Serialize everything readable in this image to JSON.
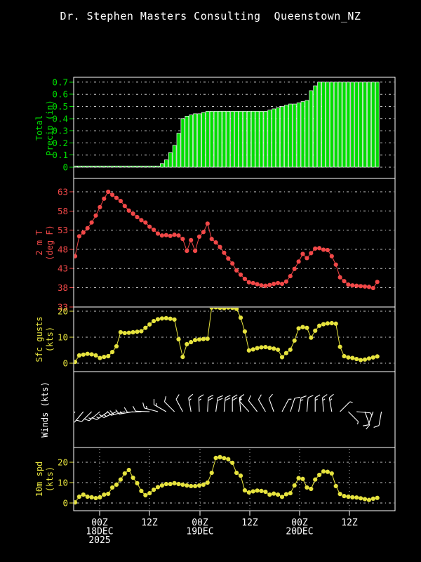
{
  "title": "Dr. Stephen Masters Consulting  Queenstown_NZ",
  "colors": {
    "precip": "#00dc00",
    "temp": "#f24848",
    "gust": "#e6e33e",
    "spd": "#e6e33e",
    "wind": "#ffffff",
    "grid": "#cccccc",
    "frame": "#ffffff",
    "text": "#ffffff",
    "background": "#000000"
  },
  "x_axis": {
    "tick_labels": [
      [
        "00Z",
        "18DEC",
        "2025"
      ],
      [
        "12Z"
      ],
      [
        "00Z",
        "19DEC"
      ],
      [
        "12Z"
      ],
      [
        "00Z",
        "20DEC"
      ],
      [
        "12Z"
      ]
    ]
  },
  "chart_data": [
    {
      "type": "bar",
      "name": "total-precip",
      "axis_label_lines": [
        "Total",
        "Precip (in)"
      ],
      "unit": "in",
      "yticks": [
        "0.7",
        "0.6",
        "0.5",
        "0.4",
        "0.3",
        "0.2",
        "0.1",
        "0"
      ],
      "ylim": [
        0,
        0.74
      ],
      "values": [
        0.01,
        0.01,
        0.01,
        0.01,
        0.01,
        0.01,
        0.01,
        0.01,
        0.01,
        0.01,
        0.01,
        0.01,
        0.01,
        0.01,
        0.01,
        0.01,
        0.01,
        0.01,
        0.01,
        0.01,
        0.01,
        0.03,
        0.06,
        0.12,
        0.18,
        0.28,
        0.4,
        0.42,
        0.43,
        0.44,
        0.44,
        0.45,
        0.46,
        0.46,
        0.46,
        0.46,
        0.46,
        0.46,
        0.46,
        0.46,
        0.46,
        0.46,
        0.46,
        0.46,
        0.46,
        0.46,
        0.46,
        0.47,
        0.48,
        0.49,
        0.5,
        0.51,
        0.52,
        0.52,
        0.53,
        0.54,
        0.55,
        0.63,
        0.67,
        0.7,
        0.7,
        0.7,
        0.7,
        0.7,
        0.7,
        0.7,
        0.7,
        0.7,
        0.7,
        0.7,
        0.7,
        0.7,
        0.7,
        0.7
      ]
    },
    {
      "type": "line",
      "name": "2m-temperature",
      "axis_label_lines": [
        "2 m T",
        "(deg F)"
      ],
      "unit": "deg F",
      "yticks": [
        "63",
        "58",
        "53",
        "48",
        "43",
        "38",
        "33"
      ],
      "ylim": [
        33,
        66.5
      ],
      "values": [
        46.2,
        51.4,
        52.4,
        53.5,
        55.0,
        56.8,
        59.0,
        61.2,
        63.0,
        62.2,
        61.4,
        60.6,
        59.3,
        58.1,
        57.3,
        56.4,
        55.6,
        55.0,
        53.9,
        53.1,
        52.1,
        51.6,
        51.7,
        51.5,
        51.8,
        51.6,
        50.7,
        47.6,
        50.4,
        47.6,
        51.3,
        52.5,
        54.7,
        50.7,
        49.8,
        48.6,
        47.1,
        45.6,
        44.3,
        42.5,
        41.4,
        40.3,
        39.4,
        39.2,
        38.9,
        38.6,
        38.5,
        38.7,
        39.0,
        39.2,
        39.0,
        39.6,
        41.0,
        42.9,
        44.8,
        46.8,
        45.7,
        47.0,
        48.2,
        48.3,
        47.9,
        47.8,
        46.2,
        44.0,
        40.7,
        39.7,
        38.8,
        38.6,
        38.5,
        38.4,
        38.3,
        38.2,
        37.9,
        39.5
      ]
    },
    {
      "type": "line",
      "name": "surface-gusts",
      "axis_label_lines": [
        "Sfc gusts",
        "(kts)"
      ],
      "unit": "kts",
      "yticks": [
        "20",
        "10",
        "0"
      ],
      "ylim": [
        0,
        21.6
      ],
      "values": [
        0.5,
        3.0,
        3.3,
        3.6,
        3.4,
        3.0,
        2.0,
        2.4,
        2.7,
        4.3,
        6.5,
        11.9,
        11.6,
        11.7,
        11.9,
        12.1,
        12.3,
        13.6,
        14.9,
        16.2,
        16.9,
        17.2,
        17.3,
        17.1,
        16.8,
        9.2,
        2.4,
        7.3,
        8.1,
        8.9,
        9.1,
        9.3,
        9.4,
        21.4,
        21.5,
        21.3,
        21.2,
        21.4,
        21.3,
        20.9,
        17.5,
        12.2,
        4.9,
        5.3,
        5.8,
        6.1,
        6.2,
        5.9,
        5.6,
        5.2,
        2.3,
        3.9,
        5.2,
        8.7,
        13.4,
        13.9,
        13.6,
        9.8,
        12.5,
        14.4,
        15.0,
        15.3,
        15.4,
        15.2,
        6.3,
        2.7,
        2.2,
        2.0,
        1.6,
        1.2,
        1.4,
        1.8,
        2.2,
        2.6
      ]
    },
    {
      "type": "wind-barbs",
      "name": "winds",
      "axis_label_lines": [
        "Winds (kts)"
      ],
      "unit": "kts",
      "barbs": [
        {
          "dir": 215,
          "spd": 10
        },
        {
          "dir": 220,
          "spd": 10
        },
        {
          "dir": 225,
          "spd": 10
        },
        {
          "dir": 230,
          "spd": 15
        },
        {
          "dir": 235,
          "spd": 15
        },
        {
          "dir": 245,
          "spd": 15
        },
        {
          "dir": 255,
          "spd": 20
        },
        {
          "dir": 260,
          "spd": 15
        },
        {
          "dir": 268,
          "spd": 10
        },
        {
          "dir": 272,
          "spd": 10
        },
        {
          "dir": 285,
          "spd": 15
        },
        {
          "dir": 300,
          "spd": 15
        },
        {
          "dir": 315,
          "spd": 10
        },
        {
          "dir": 332,
          "spd": 10
        },
        {
          "dir": 350,
          "spd": 15
        },
        {
          "dir": 358,
          "spd": 15
        },
        {
          "dir": 3,
          "spd": 20
        },
        {
          "dir": 8,
          "spd": 20
        },
        {
          "dir": 5,
          "spd": 20
        },
        {
          "dir": 0,
          "spd": 20
        },
        {
          "dir": 355,
          "spd": 15
        },
        {
          "dir": 318,
          "spd": 10
        },
        {
          "dir": 322,
          "spd": 10
        },
        {
          "dir": 330,
          "spd": 10
        },
        {
          "dir": 340,
          "spd": 10
        },
        {
          "dir": 28,
          "spd": 5
        },
        {
          "dir": 18,
          "spd": 10
        },
        {
          "dir": 10,
          "spd": 15
        },
        {
          "dir": 5,
          "spd": 10
        },
        {
          "dir": 0,
          "spd": 15
        },
        {
          "dir": 356,
          "spd": 15
        },
        {
          "dir": 350,
          "spd": 15
        },
        {
          "dir": 45,
          "spd": 5
        },
        {
          "dir": 135,
          "spd": 5
        },
        {
          "dir": 95,
          "spd": 5
        },
        {
          "dir": 160,
          "spd": 10
        },
        {
          "dir": 200,
          "spd": 10
        },
        {
          "dir": 190,
          "spd": 10
        }
      ]
    },
    {
      "type": "line",
      "name": "10m-wind-speed",
      "axis_label_lines": [
        "10m spd",
        "(kts)"
      ],
      "unit": "kts",
      "yticks": [
        "20",
        "10",
        "0"
      ],
      "ylim": [
        0,
        27
      ],
      "values": [
        0.3,
        3.1,
        4.1,
        3.1,
        2.8,
        2.4,
        2.8,
        4.1,
        4.5,
        7.6,
        9.0,
        11.5,
        14.5,
        16.2,
        12.4,
        9.7,
        5.9,
        3.8,
        4.8,
        6.5,
        7.8,
        8.6,
        9.3,
        9.3,
        9.7,
        9.3,
        9.0,
        8.6,
        8.3,
        8.3,
        8.6,
        9.0,
        10.0,
        14.8,
        22.1,
        22.5,
        22.0,
        21.5,
        19.7,
        14.8,
        13.4,
        6.2,
        5.2,
        5.7,
        6.1,
        5.9,
        5.5,
        4.1,
        4.6,
        4.1,
        3.0,
        4.3,
        4.8,
        8.6,
        12.2,
        11.8,
        7.6,
        6.9,
        11.5,
        13.8,
        15.5,
        15.3,
        14.5,
        8.3,
        4.4,
        3.4,
        3.1,
        2.8,
        2.7,
        2.3,
        1.9,
        1.5,
        2.1,
        2.5
      ]
    }
  ]
}
